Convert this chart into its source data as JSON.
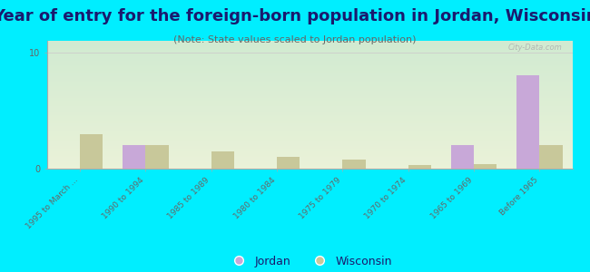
{
  "title": "Year of entry for the foreign-born population in Jordan, Wisconsin",
  "subtitle": "(Note: State values scaled to Jordan population)",
  "categories": [
    "1995 to March ...",
    "1990 to 1994",
    "1985 to 1989",
    "1980 to 1984",
    "1975 to 1979",
    "1970 to 1974",
    "1965 to 1969",
    "Before 1965"
  ],
  "jordan_values": [
    0,
    2,
    0,
    0,
    0,
    0,
    2,
    8
  ],
  "wisconsin_values": [
    3,
    2,
    1.5,
    1,
    0.8,
    0.3,
    0.4,
    2
  ],
  "jordan_color": "#c8a8d8",
  "wisconsin_color": "#c8c89a",
  "background_color": "#00eeff",
  "watermark": "City-Data.com",
  "ylim": [
    0,
    11
  ],
  "yticks": [
    0,
    10
  ],
  "bar_width": 0.35,
  "title_fontsize": 13,
  "subtitle_fontsize": 8,
  "legend_jordan": "Jordan",
  "legend_wisconsin": "Wisconsin",
  "title_color": "#1a1a6e",
  "subtitle_color": "#666666",
  "tick_color": "#666666"
}
